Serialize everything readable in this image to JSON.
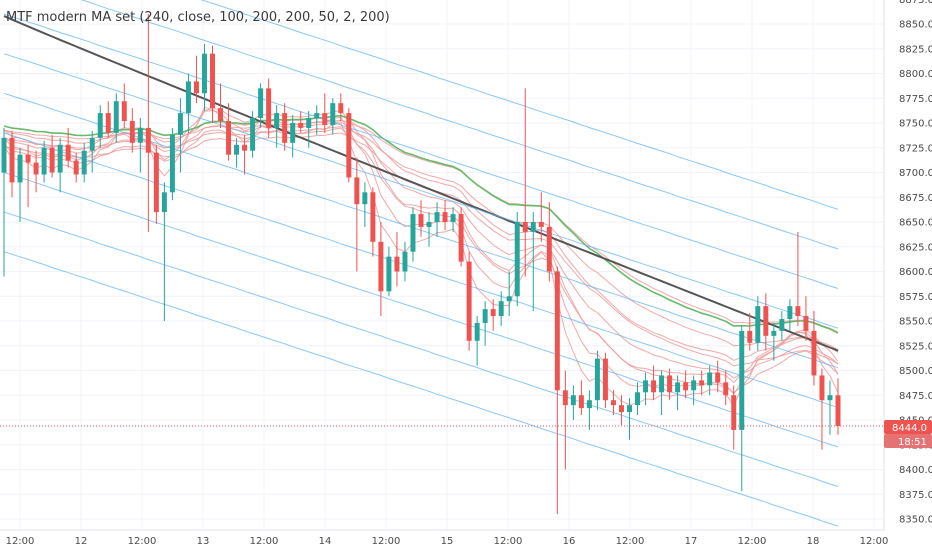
{
  "chart_data": {
    "type": "candlestick",
    "title": "MTF modern MA set (240, close, 100, 200, 200, 50, 2, 200)",
    "ylim": [
      8335,
      8895
    ],
    "y_ticks": [
      8350,
      8375,
      8400,
      8425,
      8450,
      8475,
      8500,
      8525,
      8550,
      8575,
      8600,
      8625,
      8650,
      8675,
      8700,
      8725,
      8750,
      8775,
      8800,
      8825,
      8850,
      8875
    ],
    "x_ticks": [
      "12:00",
      "12",
      "12:00",
      "13",
      "12:00",
      "14",
      "12:00",
      "15",
      "12:00",
      "16",
      "12:00",
      "17",
      "12:00",
      "18",
      "12:00"
    ],
    "grid": true,
    "last_price": {
      "label": "8444.0",
      "value": 8444,
      "countdown": "18:51"
    },
    "colors": {
      "up": "#26a69a",
      "down": "#ef5350",
      "ma_dark": "#555555",
      "ma_green": "#66bb6a",
      "ma_pink": "#ef9a9a",
      "ma_blue_steps": "#64b5f6",
      "last_line": "#ef5350",
      "countdown_bg": "#e57373"
    },
    "candles": [
      [
        8700,
        8745,
        8595,
        8735
      ],
      [
        8735,
        8742,
        8675,
        8690
      ],
      [
        8690,
        8725,
        8650,
        8718
      ],
      [
        8718,
        8728,
        8665,
        8710
      ],
      [
        8710,
        8722,
        8680,
        8698
      ],
      [
        8698,
        8732,
        8690,
        8725
      ],
      [
        8725,
        8738,
        8695,
        8700
      ],
      [
        8700,
        8735,
        8680,
        8728
      ],
      [
        8728,
        8745,
        8705,
        8712
      ],
      [
        8712,
        8720,
        8690,
        8698
      ],
      [
        8698,
        8730,
        8690,
        8722
      ],
      [
        8722,
        8742,
        8700,
        8735
      ],
      [
        8735,
        8768,
        8725,
        8760
      ],
      [
        8760,
        8772,
        8735,
        8740
      ],
      [
        8740,
        8780,
        8730,
        8772
      ],
      [
        8772,
        8790,
        8745,
        8752
      ],
      [
        8752,
        8765,
        8720,
        8730
      ],
      [
        8730,
        8755,
        8700,
        8745
      ],
      [
        8745,
        8860,
        8640,
        8720
      ],
      [
        8720,
        8728,
        8648,
        8660
      ],
      [
        8660,
        8690,
        8550,
        8680
      ],
      [
        8680,
        8745,
        8672,
        8738
      ],
      [
        8738,
        8775,
        8700,
        8760
      ],
      [
        8760,
        8800,
        8740,
        8792
      ],
      [
        8792,
        8818,
        8770,
        8780
      ],
      [
        8780,
        8830,
        8762,
        8820
      ],
      [
        8820,
        8828,
        8750,
        8765
      ],
      [
        8765,
        8790,
        8745,
        8752
      ],
      [
        8752,
        8770,
        8712,
        8718
      ],
      [
        8718,
        8735,
        8705,
        8728
      ],
      [
        8728,
        8738,
        8698,
        8722
      ],
      [
        8722,
        8762,
        8715,
        8755
      ],
      [
        8755,
        8790,
        8745,
        8785
      ],
      [
        8785,
        8795,
        8735,
        8745
      ],
      [
        8745,
        8768,
        8725,
        8760
      ],
      [
        8760,
        8770,
        8722,
        8730
      ],
      [
        8730,
        8758,
        8715,
        8750
      ],
      [
        8750,
        8762,
        8740,
        8745
      ],
      [
        8745,
        8762,
        8725,
        8755
      ],
      [
        8755,
        8768,
        8738,
        8760
      ],
      [
        8760,
        8780,
        8740,
        8748
      ],
      [
        8748,
        8775,
        8738,
        8770
      ],
      [
        8770,
        8780,
        8752,
        8760
      ],
      [
        8760,
        8765,
        8690,
        8695
      ],
      [
        8695,
        8715,
        8600,
        8668
      ],
      [
        8668,
        8690,
        8645,
        8680
      ],
      [
        8680,
        8685,
        8615,
        8630
      ],
      [
        8630,
        8650,
        8555,
        8580
      ],
      [
        8580,
        8625,
        8575,
        8615
      ],
      [
        8615,
        8640,
        8585,
        8600
      ],
      [
        8600,
        8630,
        8590,
        8620
      ],
      [
        8620,
        8665,
        8610,
        8658
      ],
      [
        8658,
        8672,
        8635,
        8645
      ],
      [
        8645,
        8660,
        8625,
        8650
      ],
      [
        8650,
        8670,
        8635,
        8660
      ],
      [
        8660,
        8672,
        8642,
        8650
      ],
      [
        8650,
        8665,
        8640,
        8658
      ],
      [
        8658,
        8665,
        8605,
        8610
      ],
      [
        8610,
        8620,
        8520,
        8530
      ],
      [
        8530,
        8555,
        8505,
        8548
      ],
      [
        8548,
        8570,
        8525,
        8562
      ],
      [
        8562,
        8572,
        8540,
        8555
      ],
      [
        8555,
        8580,
        8545,
        8570
      ],
      [
        8570,
        8600,
        8555,
        8575
      ],
      [
        8575,
        8660,
        8565,
        8650
      ],
      [
        8650,
        8785,
        8595,
        8640
      ],
      [
        8640,
        8660,
        8560,
        8650
      ],
      [
        8650,
        8680,
        8630,
        8645
      ],
      [
        8645,
        8670,
        8590,
        8600
      ],
      [
        8600,
        8605,
        8355,
        8480
      ],
      [
        8480,
        8500,
        8400,
        8465
      ],
      [
        8465,
        8485,
        8450,
        8475
      ],
      [
        8475,
        8490,
        8455,
        8462
      ],
      [
        8462,
        8480,
        8440,
        8470
      ],
      [
        8470,
        8520,
        8460,
        8512
      ],
      [
        8512,
        8518,
        8462,
        8470
      ],
      [
        8470,
        8480,
        8455,
        8465
      ],
      [
        8465,
        8475,
        8445,
        8458
      ],
      [
        8458,
        8472,
        8430,
        8465
      ],
      [
        8465,
        8488,
        8455,
        8478
      ],
      [
        8478,
        8498,
        8465,
        8490
      ],
      [
        8490,
        8505,
        8470,
        8478
      ],
      [
        8478,
        8500,
        8455,
        8495
      ],
      [
        8495,
        8502,
        8470,
        8478
      ],
      [
        8478,
        8495,
        8460,
        8488
      ],
      [
        8488,
        8500,
        8472,
        8480
      ],
      [
        8480,
        8495,
        8465,
        8490
      ],
      [
        8490,
        8500,
        8475,
        8485
      ],
      [
        8485,
        8505,
        8475,
        8498
      ],
      [
        8498,
        8510,
        8478,
        8488
      ],
      [
        8488,
        8500,
        8465,
        8475
      ],
      [
        8475,
        8485,
        8420,
        8440
      ],
      [
        8440,
        8545,
        8378,
        8540
      ],
      [
        8540,
        8558,
        8520,
        8528
      ],
      [
        8528,
        8575,
        8520,
        8565
      ],
      [
        8565,
        8578,
        8520,
        8535
      ],
      [
        8535,
        8548,
        8510,
        8540
      ],
      [
        8540,
        8560,
        8530,
        8552
      ],
      [
        8552,
        8572,
        8540,
        8565
      ],
      [
        8565,
        8640,
        8545,
        8555
      ],
      [
        8555,
        8575,
        8530,
        8540
      ],
      [
        8540,
        8560,
        8485,
        8495
      ],
      [
        8495,
        8502,
        8420,
        8470
      ],
      [
        8470,
        8490,
        8435,
        8475
      ],
      [
        8475,
        8492,
        8435,
        8444
      ]
    ]
  }
}
